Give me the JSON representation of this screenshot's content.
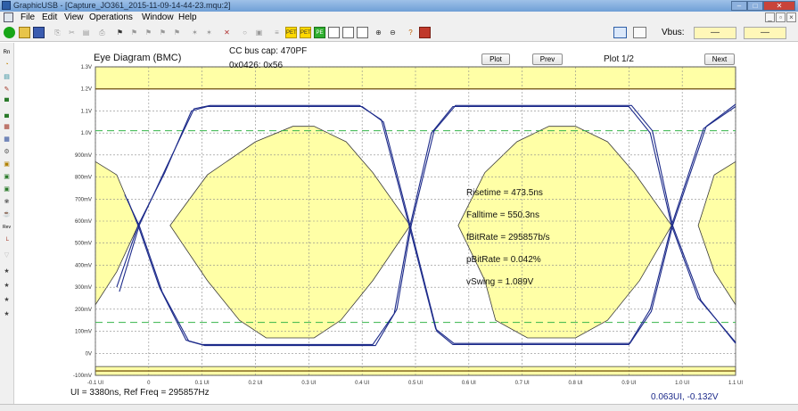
{
  "window": {
    "title": "GraphicUSB - [Capture_JO361_2015-11-09-14-44-23.mqu:2]",
    "minimize_glyph": "–",
    "maximize_glyph": "□",
    "close_glyph": "✕"
  },
  "menu": {
    "items": [
      "File",
      "Edit",
      "View",
      "Operations",
      "Window",
      "Help"
    ],
    "mdi_minimize": "_",
    "mdi_restore": "▫",
    "mdi_close": "×"
  },
  "toolbar": {
    "vbus_label": "Vbus:",
    "vbus_value_1": "—",
    "vbus_value_2": "—",
    "icon_names": [
      "run-icon",
      "open-icon",
      "save-icon",
      "copy-icon",
      "cut-icon",
      "paste-icon",
      "print-icon",
      "find-icon",
      "find-next-icon",
      "filter-icon",
      "pet-icon",
      "pet-green-icon",
      "zoom-in-icon",
      "zoom-out-icon",
      "help-icon",
      "exit-icon"
    ]
  },
  "palette": {
    "header": "Rn",
    "items": [
      "clock-icon",
      "tt-icon",
      "probe-icon",
      "bar-icon",
      "bars-icon",
      "pattern-icon",
      "grid-icon",
      "gear-icon",
      "box-icon",
      "pe-icon",
      "pt-icon",
      "lamp-icon",
      "cup-icon",
      "rev-icon",
      "chart-icon",
      "funnel-icon",
      "walk-icon",
      "run-man-icon",
      "jump-icon",
      "sprint-icon"
    ],
    "rev_label": "Rev"
  },
  "plot": {
    "title": "Eye Diagram (BMC)",
    "cc_bus_cap": "CC bus cap: 470PF",
    "address": "0x0426: 0x56",
    "buttons": {
      "plot": "Plot",
      "prev": "Prev",
      "next": "Next"
    },
    "page_label": "Plot 1/2",
    "measurements": {
      "risetime": "Risetime = 473.5ns",
      "falltime": "Falltime = 550.3ns",
      "fbitrate": "fBitRate = 295857b/s",
      "pbitrate": "pBitRate = 0.042%",
      "vswing": "vSwing = 1.089V"
    },
    "footer_ui": "UI = 3380ns, Ref Freq = 295857Hz",
    "cursor_readout": "0.063UI, -0.132V",
    "colors": {
      "mask_fill": "#ffffa6",
      "mask_outline": "#3a3a3a",
      "trace": "#1c2a8a",
      "limit_line": "#7a5a16",
      "dashed_threshold": "#35b54a",
      "grid": "#8a8a8a"
    }
  },
  "chart_data": {
    "type": "line",
    "title": "Eye Diagram (BMC)",
    "xlabel": "",
    "ylabel": "",
    "x_ticks": [
      "-0.1 UI",
      "0",
      "0.1 UI",
      "0.2 UI",
      "0.3 UI",
      "0.4 UI",
      "0.5 UI",
      "0.6 UI",
      "0.7 UI",
      "0.8 UI",
      "0.9 UI",
      "1.0 UI",
      "1.1 UI"
    ],
    "y_ticks": [
      "1.3V",
      "1.2V",
      "1.1V",
      "1.0V",
      "900mV",
      "800mV",
      "700mV",
      "600mV",
      "500mV",
      "400mV",
      "300mV",
      "200mV",
      "100mV",
      "0V",
      "-100mV"
    ],
    "xlim": [
      -0.1,
      1.1
    ],
    "ylim": [
      -0.1,
      1.3
    ],
    "grid": true,
    "limits": {
      "upper_V": 1.2,
      "lower_V": -0.08,
      "threshold_high_V": 1.01,
      "threshold_low_V": 0.14
    },
    "mask_polygons": [
      {
        "name": "left-eye",
        "points": [
          [
            -0.1,
            0.87
          ],
          [
            -0.06,
            0.81
          ],
          [
            -0.02,
            0.58
          ],
          [
            -0.06,
            0.37
          ],
          [
            -0.1,
            0.22
          ]
        ]
      },
      {
        "name": "center-eye",
        "points": [
          [
            0.04,
            0.58
          ],
          [
            0.11,
            0.81
          ],
          [
            0.2,
            0.96
          ],
          [
            0.27,
            1.03
          ],
          [
            0.31,
            1.03
          ],
          [
            0.37,
            0.96
          ],
          [
            0.42,
            0.82
          ],
          [
            0.49,
            0.58
          ],
          [
            0.42,
            0.33
          ],
          [
            0.36,
            0.15
          ],
          [
            0.31,
            0.07
          ],
          [
            0.22,
            0.07
          ],
          [
            0.17,
            0.15
          ],
          [
            0.11,
            0.33
          ]
        ]
      },
      {
        "name": "right-eye",
        "points": [
          [
            0.58,
            0.58
          ],
          [
            0.63,
            0.82
          ],
          [
            0.69,
            0.96
          ],
          [
            0.75,
            1.03
          ],
          [
            0.8,
            1.03
          ],
          [
            0.86,
            0.96
          ],
          [
            0.91,
            0.82
          ],
          [
            0.98,
            0.58
          ],
          [
            0.92,
            0.33
          ],
          [
            0.86,
            0.15
          ],
          [
            0.8,
            0.07
          ],
          [
            0.71,
            0.07
          ],
          [
            0.65,
            0.15
          ],
          [
            0.63,
            0.33
          ]
        ]
      },
      {
        "name": "far-right-eye",
        "points": [
          [
            1.1,
            0.87
          ],
          [
            1.06,
            0.81
          ],
          [
            1.03,
            0.58
          ],
          [
            1.06,
            0.37
          ],
          [
            1.1,
            0.22
          ]
        ]
      },
      {
        "name": "top-band",
        "points": [
          [
            -0.1,
            1.3
          ],
          [
            1.1,
            1.3
          ],
          [
            1.1,
            1.2
          ],
          [
            -0.1,
            1.2
          ]
        ]
      },
      {
        "name": "bottom-band",
        "points": [
          [
            -0.1,
            -0.06
          ],
          [
            1.1,
            -0.06
          ],
          [
            1.1,
            -0.1
          ],
          [
            -0.1,
            -0.1
          ]
        ]
      }
    ],
    "series": [
      {
        "values": [
          [
            -0.06,
            0.3
          ],
          [
            -0.02,
            0.58
          ],
          [
            0.03,
            0.82
          ],
          [
            0.08,
            1.1
          ],
          [
            0.11,
            1.12
          ],
          [
            0.4,
            1.12
          ],
          [
            0.44,
            1.05
          ],
          [
            0.49,
            0.58
          ],
          [
            0.54,
            0.1
          ],
          [
            0.57,
            0.04
          ],
          [
            0.9,
            0.04
          ],
          [
            0.94,
            0.2
          ],
          [
            0.98,
            0.58
          ],
          [
            1.04,
            1.02
          ],
          [
            1.1,
            1.12
          ]
        ]
      },
      {
        "values": [
          [
            -0.04,
            0.7
          ],
          [
            -0.02,
            0.58
          ],
          [
            0.02,
            0.3
          ],
          [
            0.07,
            0.06
          ],
          [
            0.1,
            0.04
          ],
          [
            0.42,
            0.04
          ],
          [
            0.46,
            0.18
          ],
          [
            0.49,
            0.58
          ],
          [
            0.53,
            1.0
          ],
          [
            0.57,
            1.12
          ],
          [
            0.9,
            1.12
          ],
          [
            0.94,
            1.0
          ],
          [
            0.98,
            0.58
          ],
          [
            1.03,
            0.25
          ],
          [
            1.1,
            0.05
          ]
        ]
      },
      {
        "values": [
          [
            -0.055,
            0.28
          ],
          [
            -0.018,
            0.58
          ],
          [
            0.032,
            0.84
          ],
          [
            0.085,
            1.11
          ],
          [
            0.115,
            1.125
          ],
          [
            0.395,
            1.125
          ],
          [
            0.436,
            1.06
          ],
          [
            0.488,
            0.58
          ],
          [
            0.538,
            0.11
          ],
          [
            0.572,
            0.045
          ],
          [
            0.902,
            0.045
          ],
          [
            0.942,
            0.19
          ],
          [
            0.982,
            0.58
          ],
          [
            1.045,
            1.03
          ],
          [
            1.1,
            1.13
          ]
        ]
      },
      {
        "values": [
          [
            -0.045,
            0.72
          ],
          [
            -0.018,
            0.58
          ],
          [
            0.025,
            0.28
          ],
          [
            0.075,
            0.055
          ],
          [
            0.105,
            0.035
          ],
          [
            0.425,
            0.035
          ],
          [
            0.465,
            0.2
          ],
          [
            0.492,
            0.58
          ],
          [
            0.535,
            1.01
          ],
          [
            0.575,
            1.125
          ],
          [
            0.905,
            1.125
          ],
          [
            0.944,
            1.01
          ],
          [
            0.982,
            0.58
          ],
          [
            1.035,
            0.24
          ],
          [
            1.1,
            0.045
          ]
        ]
      }
    ]
  }
}
